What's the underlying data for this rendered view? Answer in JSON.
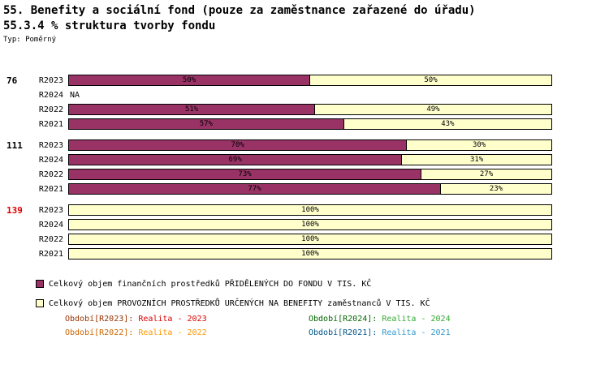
{
  "title_line1": "55. Benefity a sociální fond (pouze za zaměstnance zařazené do úřadu)",
  "title_line2": "55.3.4 % struktura tvorby fondu",
  "type_label": "Typ: Poměrný",
  "chart_data": {
    "type": "bar",
    "orientation": "horizontal",
    "stacked": true,
    "unit": "%",
    "axis_range": [
      0,
      100
    ],
    "na_label": "NA",
    "series": [
      {
        "key": "fund",
        "name": "Celkový objem finančních prostředků PŘIDĚLENÝCH DO FONDU V TIS. KČ",
        "color": "#993366"
      },
      {
        "key": "operational",
        "name": "Celkový objem PROVOZNÍCH PROSTŘEDKŮ URČENÝCH NA BENEFITY zaměstnanců V TIS. KČ",
        "color": "#FFFFCC"
      }
    ],
    "groups": [
      {
        "id": "76",
        "id_color": "#000000",
        "rows": [
          {
            "label": "R2023",
            "values": [
              50,
              50
            ]
          },
          {
            "label": "R2024",
            "values": null
          },
          {
            "label": "R2022",
            "values": [
              51,
              49
            ]
          },
          {
            "label": "R2021",
            "values": [
              57,
              43
            ]
          }
        ]
      },
      {
        "id": "111",
        "id_color": "#000000",
        "rows": [
          {
            "label": "R2023",
            "values": [
              70,
              30
            ]
          },
          {
            "label": "R2024",
            "values": [
              69,
              31
            ]
          },
          {
            "label": "R2022",
            "values": [
              73,
              27
            ]
          },
          {
            "label": "R2021",
            "values": [
              77,
              23
            ]
          }
        ]
      },
      {
        "id": "139",
        "id_color": "#DD0000",
        "rows": [
          {
            "label": "R2023",
            "values": [
              0,
              100
            ]
          },
          {
            "label": "R2024",
            "values": [
              0,
              100
            ]
          },
          {
            "label": "R2022",
            "values": [
              0,
              100
            ]
          },
          {
            "label": "R2021",
            "values": [
              0,
              100
            ]
          }
        ]
      }
    ]
  },
  "legend": [
    {
      "label": "Celkový objem finančních prostředků PŘIDĚLENÝCH DO FONDU V TIS. KČ",
      "color": "#993366"
    },
    {
      "label": "Celkový objem PROVOZNÍCH PROSTŘEDKŮ URČENÝCH NA BENEFITY zaměstnanců V TIS. KČ",
      "color": "#FFFFCC"
    }
  ],
  "periods": [
    {
      "prefix": "Období[R2023]:",
      "value": "Realita - 2023",
      "prefix_color": "#993300",
      "value_color": "#DD0000"
    },
    {
      "prefix": "Období[R2024]:",
      "value": "Realita - 2024",
      "prefix_color": "#006600",
      "value_color": "#33AA33"
    },
    {
      "prefix": "Období[R2022]:",
      "value": "Realita - 2022",
      "prefix_color": "#CC6600",
      "value_color": "#FF9900"
    },
    {
      "prefix": "Období[R2021]:",
      "value": "Realita - 2021",
      "prefix_color": "#005588",
      "value_color": "#3399CC"
    }
  ]
}
